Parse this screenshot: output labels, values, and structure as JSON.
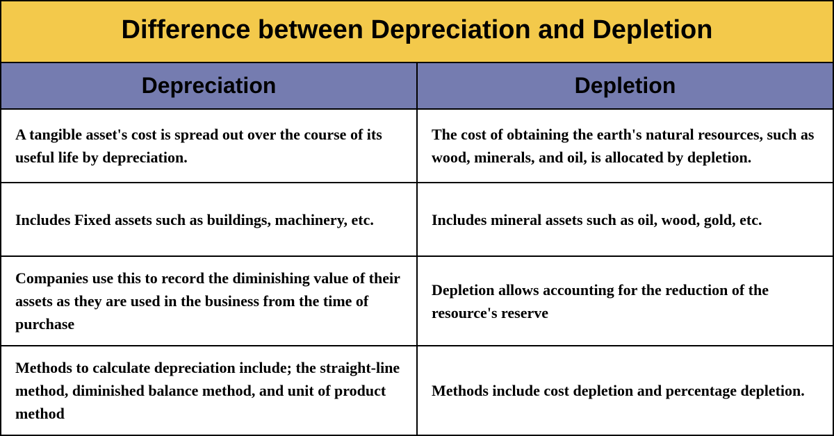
{
  "title": "Difference between Depreciation and Depletion",
  "title_bg": "#f3c94b",
  "title_color": "#000000",
  "title_fontsize": 38,
  "header_bg": "#757cb0",
  "header_color": "#000000",
  "header_fontsize": 32,
  "body_bg": "#ffffff",
  "body_color": "#000000",
  "body_fontsize": 22,
  "border_color": "#000000",
  "columns": [
    "Depreciation",
    "Depletion"
  ],
  "rows": [
    {
      "left": "A tangible asset's cost is spread out over the course of its useful life by depreciation.",
      "right": "The cost of obtaining the earth's natural resources, such as wood, minerals, and oil, is allocated by depletion."
    },
    {
      "left": "Includes Fixed assets such as buildings, machinery, etc.",
      "right": "Includes mineral assets such as oil, wood, gold, etc."
    },
    {
      "left": "Companies use this to record the diminishing value of their assets as they are used in the business from the time of purchase",
      "right": "Depletion allows accounting for the reduction of the resource's reserve"
    },
    {
      "left": "Methods to calculate depreciation include; the straight-line method, diminished balance method, and unit of product method",
      "right": "Methods include cost depletion and percentage depletion."
    }
  ]
}
